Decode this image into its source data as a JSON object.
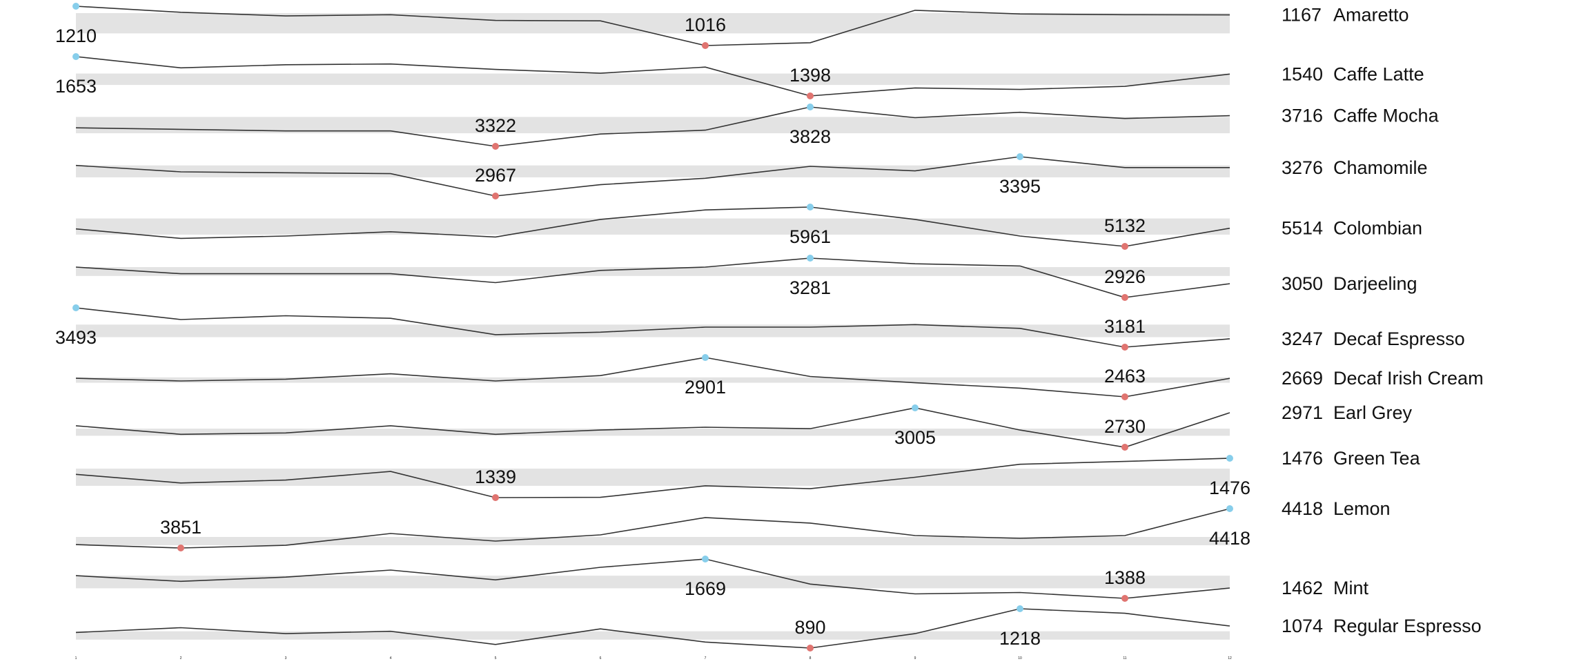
{
  "chart_data": {
    "type": "line",
    "subtype": "sparklines",
    "x": [
      1,
      2,
      3,
      4,
      5,
      6,
      7,
      8,
      9,
      10,
      11,
      12
    ],
    "x_tick_labels": [
      "1",
      "2",
      "3",
      "4",
      "5",
      "6",
      "7",
      "8",
      "9",
      "10",
      "11",
      "12"
    ],
    "line_color": "#333333",
    "band_color": "#e3e3e3",
    "max_marker_color": "#87ceeb",
    "min_marker_color": "#e07470",
    "grid": false,
    "series": [
      {
        "name": "Amaretto",
        "end_value": "1167",
        "min_point": {
          "x": 7,
          "value": 1016
        },
        "max_point": {
          "x": 1,
          "value": 1210
        },
        "values": [
          1210,
          1180,
          1162,
          1168,
          1140,
          1138,
          1016,
          1030,
          1190,
          1172,
          1168,
          1167
        ],
        "band": [
          1076,
          1176
        ]
      },
      {
        "name": "Caffe Latte",
        "end_value": "1540",
        "min_point": {
          "x": 8,
          "value": 1398
        },
        "max_point": {
          "x": 1,
          "value": 1653
        },
        "values": [
          1653,
          1580,
          1600,
          1605,
          1570,
          1545,
          1585,
          1398,
          1450,
          1440,
          1460,
          1540
        ],
        "band": [
          1469,
          1543
        ]
      },
      {
        "name": "Caffe Mocha",
        "end_value": "3716",
        "min_point": {
          "x": 5,
          "value": 3322
        },
        "max_point": {
          "x": 8,
          "value": 3828
        },
        "values": [
          3560,
          3540,
          3520,
          3520,
          3322,
          3480,
          3530,
          3828,
          3690,
          3760,
          3680,
          3716
        ],
        "band": [
          3490,
          3700
        ]
      },
      {
        "name": "Chamomile",
        "end_value": "3276",
        "min_point": {
          "x": 5,
          "value": 2967
        },
        "max_point": {
          "x": 10,
          "value": 3395
        },
        "values": [
          3300,
          3230,
          3220,
          3210,
          2967,
          3090,
          3160,
          3290,
          3240,
          3395,
          3276,
          3276
        ],
        "band": [
          3170,
          3300
        ]
      },
      {
        "name": "Colombian",
        "end_value": "5514",
        "min_point": {
          "x": 11,
          "value": 5132
        },
        "max_point": {
          "x": 8,
          "value": 5961
        },
        "values": [
          5500,
          5300,
          5350,
          5440,
          5330,
          5700,
          5900,
          5961,
          5700,
          5350,
          5132,
          5514
        ],
        "band": [
          5380,
          5720
        ]
      },
      {
        "name": "Darjeeling",
        "end_value": "3050",
        "min_point": {
          "x": 11,
          "value": 2926
        },
        "max_point": {
          "x": 8,
          "value": 3281
        },
        "values": [
          3200,
          3140,
          3140,
          3140,
          3060,
          3170,
          3200,
          3281,
          3230,
          3210,
          2926,
          3050
        ],
        "band": [
          3120,
          3200
        ]
      },
      {
        "name": "Decaf Espresso",
        "end_value": "3247",
        "min_point": {
          "x": 11,
          "value": 3181
        },
        "max_point": {
          "x": 1,
          "value": 3493
        },
        "values": [
          3493,
          3400,
          3430,
          3410,
          3280,
          3300,
          3340,
          3340,
          3360,
          3330,
          3181,
          3247
        ],
        "band": [
          3260,
          3360
        ]
      },
      {
        "name": "Decaf Irish Cream",
        "end_value": "2669",
        "min_point": {
          "x": 11,
          "value": 2463
        },
        "max_point": {
          "x": 7,
          "value": 2901
        },
        "values": [
          2670,
          2640,
          2660,
          2720,
          2640,
          2700,
          2901,
          2690,
          2620,
          2560,
          2463,
          2669
        ],
        "band": [
          2620,
          2680
        ]
      },
      {
        "name": "Earl Grey",
        "end_value": "2971",
        "min_point": {
          "x": 11,
          "value": 2730
        },
        "max_point": {
          "x": 9,
          "value": 3005
        },
        "values": [
          2880,
          2820,
          2830,
          2880,
          2820,
          2850,
          2870,
          2860,
          3005,
          2850,
          2730,
          2971
        ],
        "band": [
          2810,
          2860
        ]
      },
      {
        "name": "Green Tea",
        "end_value": "1476",
        "min_point": {
          "x": 5,
          "value": 1339
        },
        "max_point": {
          "x": 12,
          "value": 1476
        },
        "values": [
          1420,
          1390,
          1400,
          1430,
          1339,
          1340,
          1380,
          1370,
          1410,
          1455,
          1465,
          1476
        ],
        "band": [
          1380,
          1440
        ]
      },
      {
        "name": "Lemon",
        "end_value": "4418",
        "min_point": {
          "x": 2,
          "value": 3851
        },
        "max_point": {
          "x": 12,
          "value": 4418
        },
        "values": [
          3900,
          3851,
          3890,
          4060,
          3950,
          4040,
          4290,
          4210,
          4030,
          3990,
          4030,
          4418
        ],
        "band": [
          3890,
          4010
        ]
      },
      {
        "name": "Mint",
        "end_value": "1462",
        "min_point": {
          "x": 11,
          "value": 1388
        },
        "max_point": {
          "x": 7,
          "value": 1669
        },
        "values": [
          1550,
          1510,
          1540,
          1590,
          1520,
          1610,
          1669,
          1490,
          1420,
          1430,
          1388,
          1462
        ],
        "band": [
          1460,
          1550
        ]
      },
      {
        "name": "Regular Espresso",
        "end_value": "1074",
        "min_point": {
          "x": 8,
          "value": 890
        },
        "max_point": {
          "x": 10,
          "value": 1218
        },
        "values": [
          1020,
          1060,
          1010,
          1030,
          920,
          1050,
          940,
          890,
          1010,
          1218,
          1180,
          1074
        ],
        "band": [
          960,
          1030
        ]
      }
    ]
  }
}
